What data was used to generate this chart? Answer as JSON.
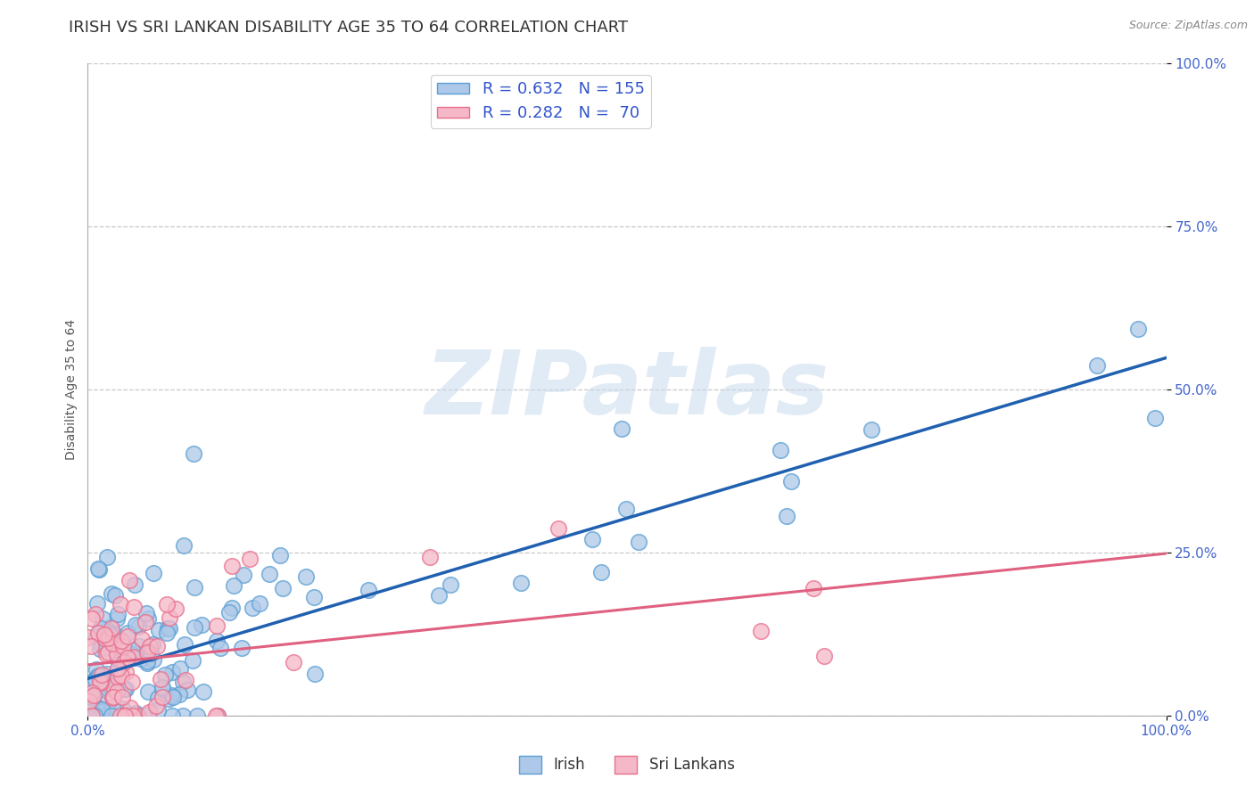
{
  "title": "IRISH VS SRI LANKAN DISABILITY AGE 35 TO 64 CORRELATION CHART",
  "source_text": "Source: ZipAtlas.com",
  "ylabel": "Disability Age 35 to 64",
  "xlim": [
    0,
    1
  ],
  "ylim": [
    0,
    1
  ],
  "y_tick_values": [
    0,
    0.25,
    0.5,
    0.75,
    1.0
  ],
  "irish_color": "#adc8e8",
  "irish_edge_color": "#5a9fd4",
  "sri_lankan_color": "#f5b8c8",
  "sri_lankan_edge_color": "#e8708c",
  "irish_line_color": "#2060b0",
  "sri_lankan_line_color": "#e06080",
  "irish_R": 0.632,
  "irish_N": 155,
  "sri_lankan_R": 0.282,
  "sri_lankan_N": 70,
  "watermark_text": "ZIPatlas",
  "title_fontsize": 13,
  "axis_label_fontsize": 10,
  "tick_fontsize": 11,
  "legend_fontsize": 13,
  "background_color": "#ffffff",
  "grid_color": "#c8c8c8"
}
